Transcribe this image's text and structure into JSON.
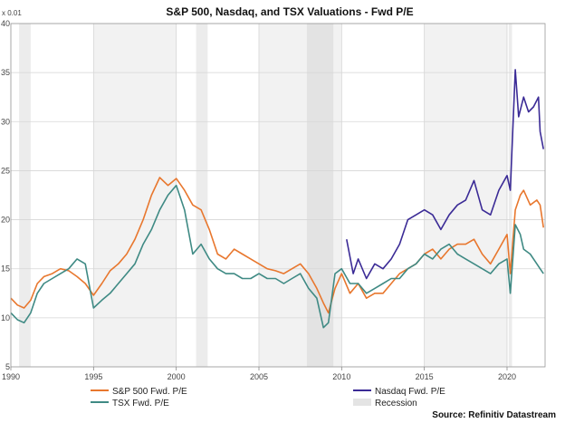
{
  "chart_data": {
    "type": "line",
    "title": "S&P 500, Nasdaq, and TSX Valuations - Fwd P/E",
    "unit_label": "x 0.01",
    "xlim": [
      1990,
      2022.3
    ],
    "ylim": [
      5,
      40
    ],
    "x_ticks": [
      1990,
      1995,
      2000,
      2005,
      2010,
      2015,
      2020
    ],
    "y_ticks": [
      5,
      10,
      15,
      20,
      25,
      30,
      35,
      40
    ],
    "grid": true,
    "legend_position": "bottom",
    "recessions": [
      [
        1990.5,
        1991.2
      ],
      [
        2001.2,
        2001.9
      ],
      [
        2007.9,
        2009.5
      ],
      [
        2020.1,
        2020.3
      ]
    ],
    "shaded_bands": [
      [
        1995,
        2000
      ],
      [
        2005,
        2010
      ],
      [
        2015,
        2020
      ]
    ],
    "series": [
      {
        "name": "S&P 500 Fwd. P/E",
        "color": "#e8772e",
        "x": [
          1990.0,
          1990.4,
          1990.8,
          1991.2,
          1991.6,
          1992.0,
          1992.5,
          1993.0,
          1993.5,
          1994.0,
          1994.5,
          1995.0,
          1995.5,
          1996.0,
          1996.5,
          1997.0,
          1997.5,
          1998.0,
          1998.5,
          1999.0,
          1999.5,
          2000.0,
          2000.5,
          2001.0,
          2001.5,
          2002.0,
          2002.5,
          2003.0,
          2003.5,
          2004.0,
          2004.5,
          2005.0,
          2005.5,
          2006.0,
          2006.5,
          2007.0,
          2007.5,
          2008.0,
          2008.5,
          2008.9,
          2009.2,
          2009.6,
          2010.0,
          2010.5,
          2011.0,
          2011.5,
          2012.0,
          2012.5,
          2013.0,
          2013.5,
          2014.0,
          2014.5,
          2015.0,
          2015.5,
          2016.0,
          2016.5,
          2017.0,
          2017.5,
          2018.0,
          2018.5,
          2019.0,
          2019.5,
          2020.0,
          2020.2,
          2020.5,
          2020.8,
          2021.0,
          2021.4,
          2021.8,
          2022.0,
          2022.2
        ],
        "values": [
          12.0,
          11.3,
          11.0,
          11.8,
          13.5,
          14.2,
          14.5,
          15.0,
          14.8,
          14.2,
          13.5,
          12.3,
          13.5,
          14.8,
          15.5,
          16.5,
          18.0,
          20.0,
          22.5,
          24.3,
          23.5,
          24.2,
          23.0,
          21.5,
          21.0,
          19.0,
          16.5,
          16.0,
          17.0,
          16.5,
          16.0,
          15.5,
          15.0,
          14.8,
          14.5,
          15.0,
          15.5,
          14.5,
          13.0,
          11.5,
          10.5,
          13.0,
          14.5,
          12.5,
          13.5,
          12.0,
          12.5,
          12.5,
          13.5,
          14.5,
          15.0,
          15.5,
          16.5,
          17.0,
          16.0,
          17.0,
          17.5,
          17.5,
          18.0,
          16.5,
          15.5,
          17.0,
          18.5,
          14.5,
          21.0,
          22.5,
          23.0,
          21.5,
          22.0,
          21.5,
          19.2
        ]
      },
      {
        "name": "TSX Fwd. P/E",
        "color": "#3f8a84",
        "x": [
          1990.0,
          1990.4,
          1990.8,
          1991.2,
          1991.6,
          1992.0,
          1992.5,
          1993.0,
          1993.5,
          1994.0,
          1994.5,
          1995.0,
          1995.5,
          1996.0,
          1996.5,
          1997.0,
          1997.5,
          1998.0,
          1998.5,
          1999.0,
          1999.5,
          2000.0,
          2000.5,
          2001.0,
          2001.5,
          2002.0,
          2002.5,
          2003.0,
          2003.5,
          2004.0,
          2004.5,
          2005.0,
          2005.5,
          2006.0,
          2006.5,
          2007.0,
          2007.5,
          2008.0,
          2008.5,
          2008.9,
          2009.2,
          2009.6,
          2010.0,
          2010.5,
          2011.0,
          2011.5,
          2012.0,
          2012.5,
          2013.0,
          2013.5,
          2014.0,
          2014.5,
          2015.0,
          2015.5,
          2016.0,
          2016.5,
          2017.0,
          2017.5,
          2018.0,
          2018.5,
          2019.0,
          2019.5,
          2020.0,
          2020.2,
          2020.5,
          2020.8,
          2021.0,
          2021.4,
          2021.8,
          2022.0,
          2022.2
        ],
        "values": [
          10.5,
          9.8,
          9.5,
          10.5,
          12.5,
          13.5,
          14.0,
          14.5,
          15.0,
          16.0,
          15.5,
          11.0,
          11.8,
          12.5,
          13.5,
          14.5,
          15.5,
          17.5,
          19.0,
          21.0,
          22.5,
          23.5,
          21.0,
          16.5,
          17.5,
          16.0,
          15.0,
          14.5,
          14.5,
          14.0,
          14.0,
          14.5,
          14.0,
          14.0,
          13.5,
          14.0,
          14.5,
          13.0,
          12.0,
          9.0,
          9.5,
          14.5,
          15.0,
          13.5,
          13.5,
          12.5,
          13.0,
          13.5,
          14.0,
          14.0,
          15.0,
          15.5,
          16.5,
          16.0,
          17.0,
          17.5,
          16.5,
          16.0,
          15.5,
          15.0,
          14.5,
          15.5,
          16.0,
          12.5,
          19.5,
          18.5,
          17.0,
          16.5,
          15.5,
          15.0,
          14.5
        ]
      },
      {
        "name": "Nasdaq Fwd. P/E",
        "color": "#3b2b96",
        "x": [
          2010.3,
          2010.7,
          2011.0,
          2011.5,
          2012.0,
          2012.5,
          2013.0,
          2013.5,
          2014.0,
          2014.5,
          2015.0,
          2015.5,
          2016.0,
          2016.5,
          2017.0,
          2017.5,
          2018.0,
          2018.5,
          2019.0,
          2019.5,
          2020.0,
          2020.2,
          2020.5,
          2020.7,
          2021.0,
          2021.3,
          2021.6,
          2021.9,
          2022.0,
          2022.2
        ],
        "values": [
          18.0,
          14.5,
          16.0,
          14.0,
          15.5,
          15.0,
          16.0,
          17.5,
          20.0,
          20.5,
          21.0,
          20.5,
          19.0,
          20.5,
          21.5,
          22.0,
          24.0,
          21.0,
          20.5,
          23.0,
          24.5,
          23.0,
          35.3,
          30.5,
          32.5,
          31.0,
          31.5,
          32.5,
          29.0,
          27.2
        ]
      },
      {
        "name": "Recession",
        "color": "#c9c9c9"
      }
    ],
    "source": "Source: Refinitiv Datastream"
  }
}
